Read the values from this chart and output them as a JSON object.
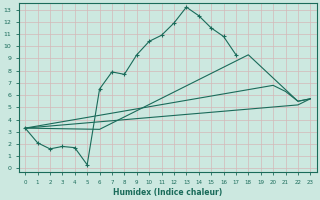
{
  "xlabel": "Humidex (Indice chaleur)",
  "xlim": [
    -0.5,
    23.5
  ],
  "ylim": [
    -0.3,
    13.5
  ],
  "xticks": [
    0,
    1,
    2,
    3,
    4,
    5,
    6,
    7,
    8,
    9,
    10,
    11,
    12,
    13,
    14,
    15,
    16,
    17,
    18,
    19,
    20,
    21,
    22,
    23
  ],
  "yticks": [
    0,
    1,
    2,
    3,
    4,
    5,
    6,
    7,
    8,
    9,
    10,
    11,
    12,
    13
  ],
  "bg_color": "#cce8e0",
  "grid_color": "#aacccc",
  "line_color": "#1a6b5a",
  "line1_x": [
    0,
    1,
    2,
    3,
    4,
    5,
    6,
    7,
    8,
    9,
    10,
    11,
    12,
    13,
    14,
    15,
    16,
    17
  ],
  "line1_y": [
    3.3,
    2.1,
    1.6,
    1.8,
    1.7,
    0.3,
    6.5,
    7.9,
    7.7,
    9.3,
    10.4,
    10.9,
    11.9,
    13.2,
    12.5,
    11.5,
    10.8,
    9.3
  ],
  "line2_x": [
    0,
    20,
    21,
    22,
    23
  ],
  "line2_y": [
    3.3,
    6.8,
    6.3,
    5.5,
    5.7
  ],
  "line3_x": [
    0,
    6,
    18,
    22,
    23
  ],
  "line3_y": [
    3.3,
    3.2,
    9.3,
    5.5,
    5.7
  ],
  "line4_x": [
    0,
    22,
    23
  ],
  "line4_y": [
    3.3,
    5.2,
    5.7
  ]
}
